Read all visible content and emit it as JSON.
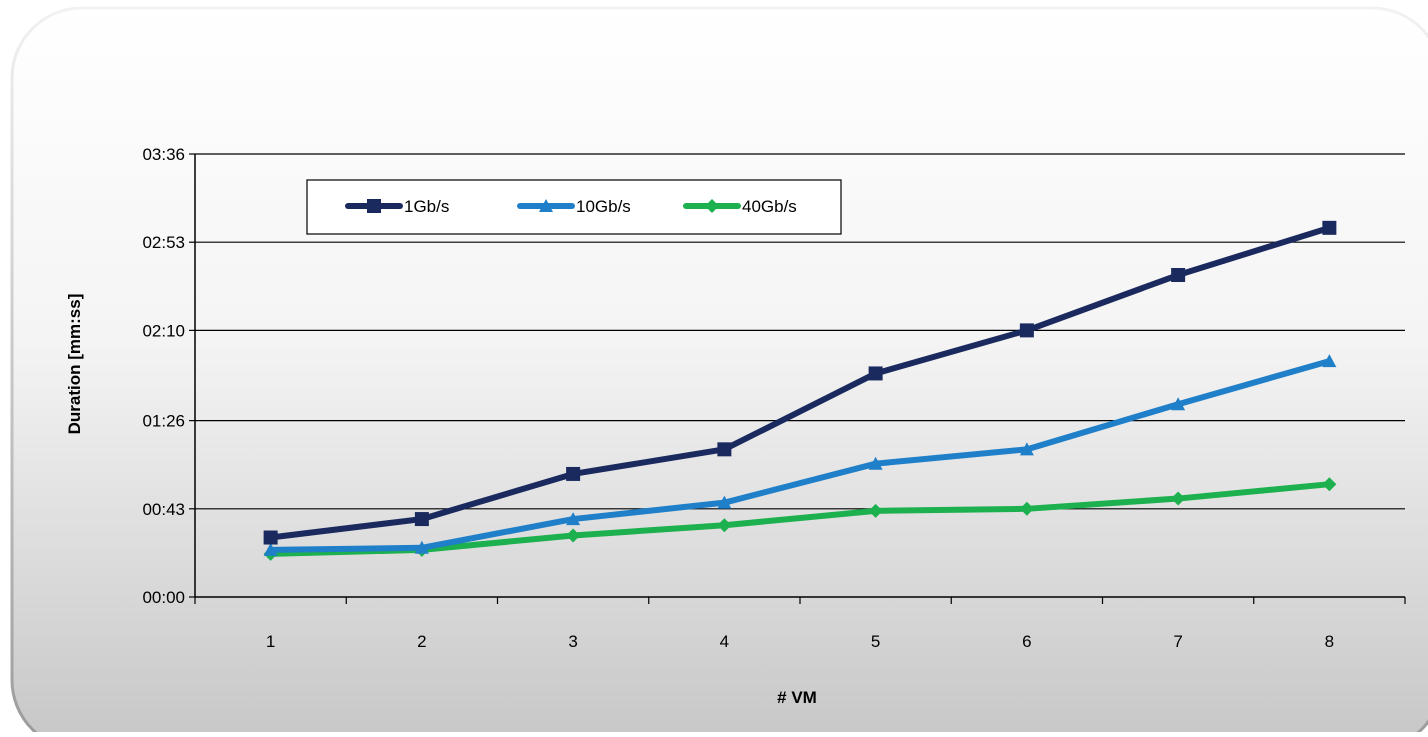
{
  "chart_data": {
    "type": "line",
    "title": "",
    "xlabel": "# VM",
    "ylabel": "Duration [mm:ss]",
    "categories": [
      "1",
      "2",
      "3",
      "4",
      "5",
      "6",
      "7",
      "8"
    ],
    "y_ticks": [
      "00:00",
      "00:43",
      "01:26",
      "02:10",
      "02:53",
      "03:36"
    ],
    "ylim": [
      "00:00",
      "03:36"
    ],
    "grid": true,
    "legend_placement": "top-left",
    "series": [
      {
        "name": "1Gb/s",
        "color": "#1b2a5e",
        "marker": "square",
        "values": [
          "00:29",
          "00:38",
          "01:00",
          "01:12",
          "01:49",
          "02:10",
          "02:37",
          "03:00"
        ]
      },
      {
        "name": "10Gb/s",
        "color": "#1f7fc9",
        "marker": "triangle",
        "values": [
          "00:23",
          "00:24",
          "00:38",
          "00:46",
          "01:05",
          "01:12",
          "01:34",
          "01:55"
        ]
      },
      {
        "name": "40Gb/s",
        "color": "#1db04e",
        "marker": "diamond",
        "values": [
          "00:21",
          "00:23",
          "00:30",
          "00:35",
          "00:42",
          "00:43",
          "00:48",
          "00:55"
        ]
      }
    ]
  }
}
